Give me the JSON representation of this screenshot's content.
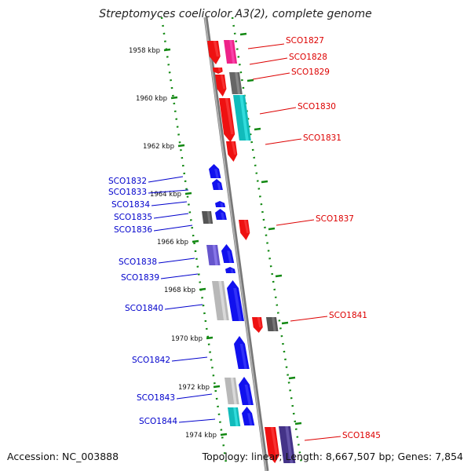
{
  "title": "Streptomyces coelicolor A3(2), complete genome",
  "footer": {
    "accession": "Accession: NC_003888",
    "summary": "Topology: linear; Length: 8,667,507 bp; Genes: 7,854"
  },
  "colors": {
    "forward_label": "#dd0000",
    "reverse_label": "#0000cc",
    "ticks": "#118811",
    "backbone": "#888888"
  },
  "kbp_ticks": [
    {
      "label": "1958 kbp",
      "kbp": 1958
    },
    {
      "label": "1960 kbp",
      "kbp": 1960
    },
    {
      "label": "1962 kbp",
      "kbp": 1962
    },
    {
      "label": "1964 kbp",
      "kbp": 1964
    },
    {
      "label": "1966 kbp",
      "kbp": 1966
    },
    {
      "label": "1968 kbp",
      "kbp": 1968
    },
    {
      "label": "1970 kbp",
      "kbp": 1970
    },
    {
      "label": "1972 kbp",
      "kbp": 1972
    },
    {
      "label": "1974 kbp",
      "kbp": 1974
    }
  ],
  "genes_forward": [
    {
      "id": "SCO1827",
      "color": "#ee1111"
    },
    {
      "id": "SCO1828",
      "color": "#ee1111"
    },
    {
      "id": "SCO1829",
      "color": "#ee1111"
    },
    {
      "id": "SCO1830",
      "color": "#ee1111"
    },
    {
      "id": "SCO1831",
      "color": "#ee1111"
    },
    {
      "id": "SCO1837",
      "color": "#ee1111"
    },
    {
      "id": "SCO1841",
      "color": "#ee1111"
    },
    {
      "id": "SCO1845",
      "color": "#ee1111"
    }
  ],
  "genes_reverse": [
    {
      "id": "SCO1832",
      "color": "#1111ee"
    },
    {
      "id": "SCO1833",
      "color": "#1111ee"
    },
    {
      "id": "SCO1834",
      "color": "#1111ee"
    },
    {
      "id": "SCO1835",
      "color": "#1111ee"
    },
    {
      "id": "SCO1836",
      "color": "#1111ee"
    },
    {
      "id": "SCO1838",
      "color": "#1111ee"
    },
    {
      "id": "SCO1839",
      "color": "#1111ee"
    },
    {
      "id": "SCO1840",
      "color": "#1111ee"
    },
    {
      "id": "SCO1842",
      "color": "#1111ee"
    },
    {
      "id": "SCO1843",
      "color": "#1111ee"
    },
    {
      "id": "SCO1844",
      "color": "#1111ee"
    }
  ]
}
